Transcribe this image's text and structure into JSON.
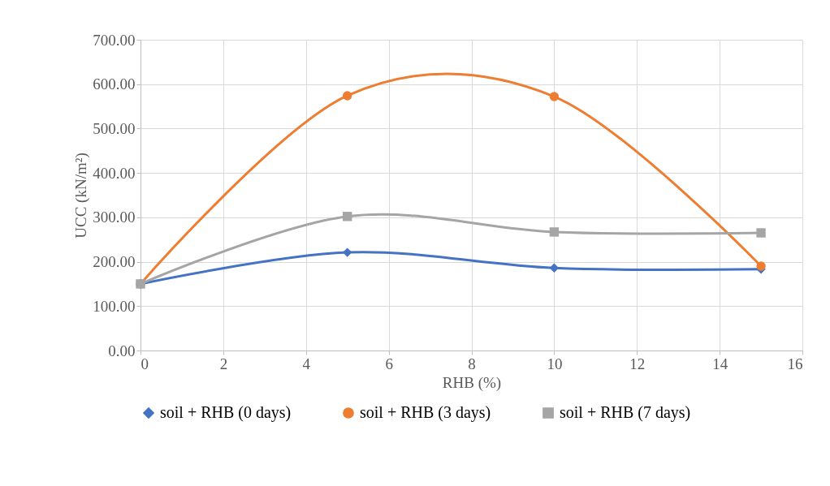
{
  "chart_data": {
    "type": "line",
    "xlabel": "RHB (%)",
    "ylabel": "UCC (kN/m²)",
    "x": [
      0,
      5,
      10,
      15
    ],
    "series": [
      {
        "name": "soil + RHB (0 days)",
        "color": "#4472c4",
        "marker": "diamond",
        "values": [
          150,
          221,
          186,
          183
        ]
      },
      {
        "name": "soil + RHB (3 days)",
        "color": "#ed7d31",
        "marker": "circle",
        "values": [
          150,
          574,
          572,
          190
        ]
      },
      {
        "name": "soil + RHB (7 days)",
        "color": "#a5a5a5",
        "marker": "square",
        "values": [
          150,
          302,
          267,
          265
        ]
      }
    ],
    "xlim": [
      0,
      16
    ],
    "xticks": [
      0,
      2,
      4,
      6,
      8,
      10,
      12,
      14,
      16
    ],
    "ylim": [
      0,
      700
    ],
    "yticks": [
      {
        "value": 0,
        "label": "0.00"
      },
      {
        "value": 100,
        "label": "100.00"
      },
      {
        "value": 200,
        "label": "200.00"
      },
      {
        "value": 300,
        "label": "300.00"
      },
      {
        "value": 400,
        "label": "400.00"
      },
      {
        "value": 500,
        "label": "500.00"
      },
      {
        "value": 600,
        "label": "600.00"
      },
      {
        "value": 700,
        "label": "700.00"
      }
    ],
    "grid": true,
    "legend": "bottom",
    "line_style": "solid"
  }
}
